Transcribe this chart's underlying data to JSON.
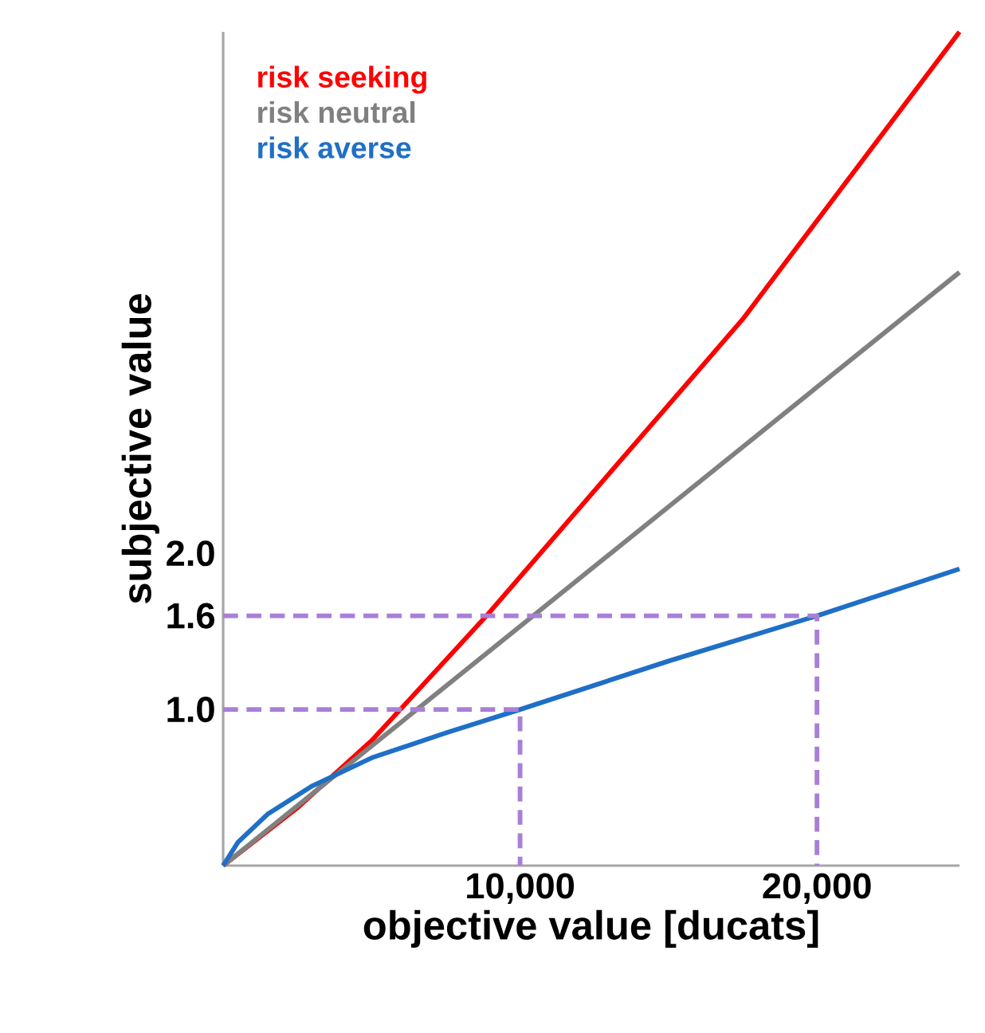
{
  "chart_data": {
    "type": "line",
    "xlabel": "objective value [ducats]",
    "ylabel": "subjective value",
    "xlim": [
      0,
      24800
    ],
    "ylim": [
      0,
      5.34
    ],
    "xticks": [
      {
        "value": 10000,
        "label": "10,000"
      },
      {
        "value": 20000,
        "label": "20,000"
      }
    ],
    "yticks": [
      {
        "value": 1.0,
        "label": "1.0"
      },
      {
        "value": 1.6,
        "label": "1.6"
      },
      {
        "value": 2.0,
        "label": "2.0"
      }
    ],
    "legend": "top left",
    "line_style": "solid",
    "series": [
      {
        "name": "risk seeking",
        "color": "#ff0000",
        "x": [
          0,
          2500,
          5000,
          8870,
          12500,
          17500,
          24800
        ],
        "values": [
          0,
          0.37,
          0.8,
          1.6,
          2.4,
          3.5,
          5.34
        ]
      },
      {
        "name": "risk neutral",
        "color": "#808080",
        "x": [
          0,
          24800
        ],
        "values": [
          0,
          3.8
        ]
      },
      {
        "name": "risk averse",
        "color": "#1f6fc6",
        "x": [
          0,
          500,
          1500,
          3000,
          5000,
          7500,
          10000,
          15000,
          20000,
          24800
        ],
        "values": [
          0,
          0.15,
          0.33,
          0.51,
          0.69,
          0.85,
          1.0,
          1.31,
          1.6,
          1.9
        ]
      },
      {
        "color": "#a97fd6",
        "line_style": "dashed",
        "x": [
          0,
          10000,
          10000
        ],
        "values": [
          1.0,
          1.0,
          0
        ]
      },
      {
        "color": "#a97fd6",
        "line_style": "dashed",
        "x": [
          0,
          20000,
          20000
        ],
        "values": [
          1.6,
          1.6,
          0
        ]
      }
    ]
  }
}
